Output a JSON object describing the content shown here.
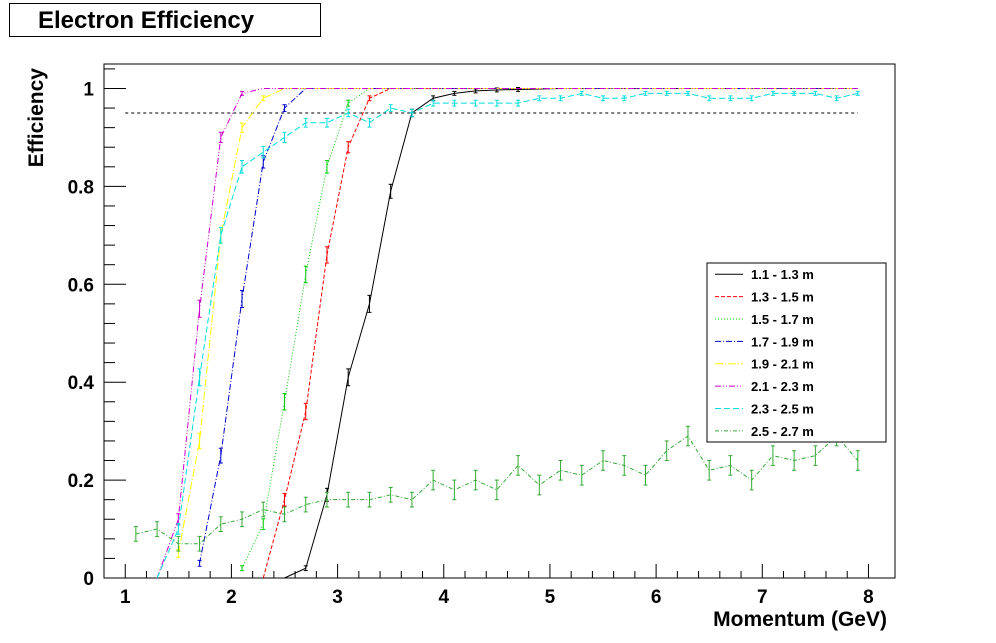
{
  "chart_data": {
    "type": "line",
    "title": "Electron Efficiency",
    "xlabel": "Momentum (GeV)",
    "ylabel": "Efficiency",
    "xlim": [
      0.8,
      8.25
    ],
    "ylim": [
      0,
      1.05
    ],
    "xticks": [
      1,
      2,
      3,
      4,
      5,
      6,
      7,
      8
    ],
    "xtick_labels": [
      "1",
      "2",
      "3",
      "4",
      "5",
      "6",
      "7",
      "8"
    ],
    "yticks": [
      0,
      0.2,
      0.4,
      0.6,
      0.8,
      1
    ],
    "ytick_labels": [
      "0",
      "0.2",
      "0.4",
      "0.6",
      "0.8",
      "1"
    ],
    "grid": false,
    "legend_position": "right",
    "reference_line": {
      "y": 0.95,
      "x_range": [
        1.0,
        7.9
      ],
      "style": "dashed",
      "color": "#000000"
    },
    "series": [
      {
        "name": "1.1 - 1.3 m",
        "color": "#000000",
        "dash": "none",
        "x": [
          2.5,
          2.7,
          2.9,
          3.1,
          3.3,
          3.5,
          3.7,
          3.9,
          4.1,
          4.3,
          4.5,
          4.7,
          4.9,
          5.1,
          5.3,
          5.5,
          5.7,
          5.9,
          6.1,
          6.3,
          6.5,
          6.7,
          6.9,
          7.1,
          7.3,
          7.5,
          7.7,
          7.9
        ],
        "y": [
          0.0,
          0.02,
          0.17,
          0.41,
          0.56,
          0.79,
          0.95,
          0.98,
          0.99,
          0.995,
          0.997,
          0.998,
          0.999,
          1,
          1,
          1,
          1,
          1,
          1,
          1,
          1,
          1,
          1,
          1,
          1,
          1,
          1,
          1
        ]
      },
      {
        "name": "1.3 - 1.5 m",
        "color": "#ff0000",
        "dash": "4,2",
        "x": [
          2.3,
          2.5,
          2.7,
          2.9,
          3.1,
          3.3,
          3.5,
          3.7,
          3.9,
          4.1,
          4.5,
          5.0,
          6.0,
          7.0,
          7.9
        ],
        "y": [
          0.0,
          0.16,
          0.34,
          0.66,
          0.88,
          0.98,
          1.0,
          1,
          1,
          1,
          1,
          1,
          1,
          1,
          1
        ]
      },
      {
        "name": "1.5 - 1.7 m",
        "color": "#00cc00",
        "dash": "1,2",
        "x": [
          2.1,
          2.3,
          2.5,
          2.7,
          2.9,
          3.1,
          3.3,
          3.5,
          4.0,
          5.0,
          6.0,
          7.0,
          7.9
        ],
        "y": [
          0.02,
          0.11,
          0.36,
          0.62,
          0.84,
          0.97,
          1.0,
          1,
          1,
          1,
          1,
          1,
          1
        ]
      },
      {
        "name": "1.7 - 1.9 m",
        "color": "#0000cc",
        "dash": "6,2,1,2",
        "x": [
          1.7,
          1.9,
          2.1,
          2.3,
          2.5,
          2.7,
          2.9,
          3.1,
          4.0,
          5.0,
          6.0,
          7.0,
          7.9
        ],
        "y": [
          0.03,
          0.25,
          0.57,
          0.85,
          0.96,
          1.0,
          1,
          1,
          1,
          1,
          1,
          1,
          1
        ]
      },
      {
        "name": "1.9 - 2.1 m",
        "color": "#ffff00",
        "dash": "8,2,1,2",
        "x": [
          1.5,
          1.7,
          1.9,
          2.1,
          2.3,
          2.5,
          2.7,
          3.0,
          4.0,
          5.0,
          6.0,
          7.0,
          7.9
        ],
        "y": [
          0.05,
          0.28,
          0.7,
          0.92,
          0.98,
          1.0,
          1,
          1,
          1,
          1,
          1,
          1,
          1
        ]
      },
      {
        "name": "2.1 - 2.3 m",
        "color": "#cc00cc",
        "dash": "6,2,1,2,1,2",
        "x": [
          1.3,
          1.5,
          1.7,
          1.9,
          2.1,
          2.3,
          2.5,
          3.0,
          4.0,
          5.0,
          6.0,
          7.0,
          7.9
        ],
        "y": [
          0.0,
          0.12,
          0.55,
          0.9,
          0.99,
          1.0,
          1,
          1,
          1,
          1,
          1,
          1,
          1
        ]
      },
      {
        "name": "2.3 - 2.5 m",
        "color": "#00dddd",
        "dash": "6,3",
        "x": [
          1.3,
          1.5,
          1.7,
          1.9,
          2.1,
          2.3,
          2.5,
          2.7,
          2.9,
          3.1,
          3.3,
          3.5,
          3.7,
          3.9,
          4.1,
          4.3,
          4.5,
          4.7,
          4.9,
          5.1,
          5.3,
          5.5,
          5.7,
          5.9,
          6.1,
          6.3,
          6.5,
          6.7,
          6.9,
          7.1,
          7.3,
          7.5,
          7.7,
          7.9
        ],
        "y": [
          0.0,
          0.1,
          0.41,
          0.7,
          0.84,
          0.87,
          0.9,
          0.93,
          0.93,
          0.95,
          0.93,
          0.96,
          0.95,
          0.97,
          0.97,
          0.97,
          0.97,
          0.97,
          0.98,
          0.98,
          0.99,
          0.98,
          0.98,
          0.99,
          0.99,
          0.99,
          0.98,
          0.98,
          0.98,
          0.99,
          0.99,
          0.99,
          0.98,
          0.99
        ]
      },
      {
        "name": "2.5 - 2.7 m",
        "color": "#33aa33",
        "dash": "4,2,1,2",
        "x": [
          1.1,
          1.3,
          1.5,
          1.7,
          1.9,
          2.1,
          2.3,
          2.5,
          2.7,
          2.9,
          3.1,
          3.3,
          3.5,
          3.7,
          3.9,
          4.1,
          4.3,
          4.5,
          4.7,
          4.9,
          5.1,
          5.3,
          5.5,
          5.7,
          5.9,
          6.1,
          6.3,
          6.5,
          6.7,
          6.9,
          7.1,
          7.3,
          7.5,
          7.7,
          7.9
        ],
        "y": [
          0.09,
          0.1,
          0.07,
          0.07,
          0.11,
          0.12,
          0.14,
          0.13,
          0.15,
          0.16,
          0.16,
          0.16,
          0.17,
          0.16,
          0.2,
          0.18,
          0.2,
          0.18,
          0.23,
          0.19,
          0.22,
          0.21,
          0.24,
          0.23,
          0.21,
          0.26,
          0.29,
          0.22,
          0.23,
          0.2,
          0.25,
          0.24,
          0.25,
          0.29,
          0.24
        ],
        "err": [
          0.015,
          0.015,
          0.015,
          0.015,
          0.015,
          0.015,
          0.015,
          0.015,
          0.015,
          0.015,
          0.015,
          0.015,
          0.015,
          0.015,
          0.02,
          0.02,
          0.02,
          0.02,
          0.02,
          0.02,
          0.02,
          0.02,
          0.02,
          0.02,
          0.02,
          0.02,
          0.02,
          0.02,
          0.02,
          0.02,
          0.02,
          0.02,
          0.02,
          0.02,
          0.02
        ]
      }
    ]
  }
}
